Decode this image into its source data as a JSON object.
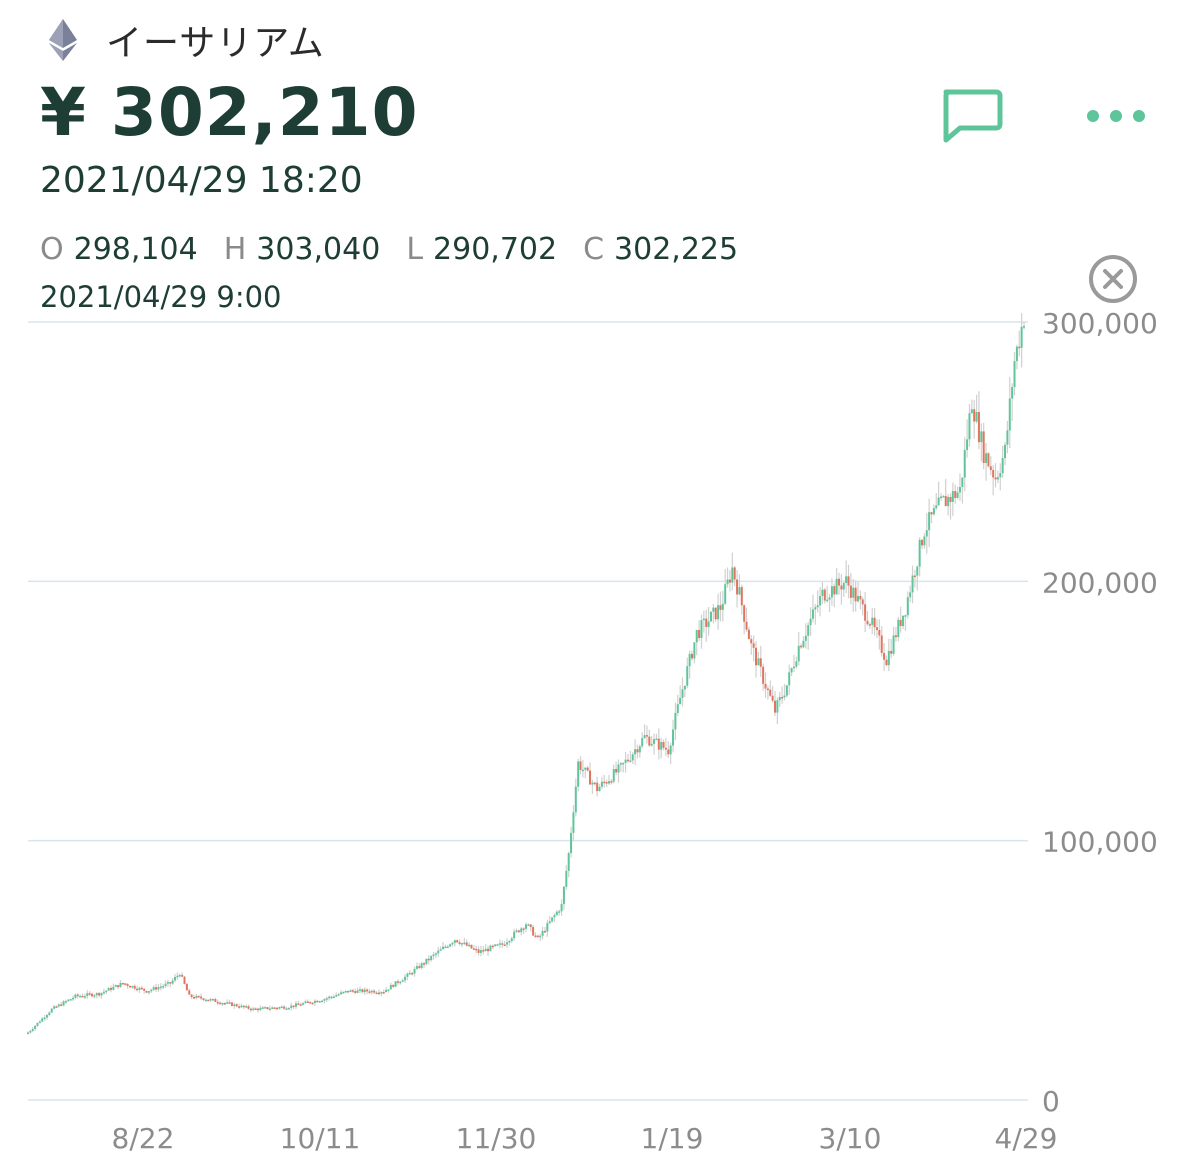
{
  "asset": {
    "name": "イーサリアム",
    "icon": "ethereum-icon"
  },
  "price": "¥ 302,210",
  "timestamp": "2021/04/29 18:20",
  "ohlc": {
    "o_label": "O",
    "o_value": "298,104",
    "h_label": "H",
    "h_value": "303,040",
    "l_label": "L",
    "l_value": "290,702",
    "c_label": "C",
    "c_value": "302,225"
  },
  "bar_date": "2021/04/29 9:00",
  "toolbar": {
    "chat_icon": "chat-bubble-icon",
    "more_icon": "more-dots-icon",
    "close_icon": "close-circle-icon"
  },
  "colors": {
    "accent": "#5ec49a",
    "up": "#5ec49a",
    "down": "#e0745c",
    "wick": "#d0d0d0",
    "grid": "#d6e6ee",
    "text_dark": "#1d3d35"
  },
  "chart_data": {
    "type": "candlestick",
    "y_ticks": [
      "300,000",
      "200,000",
      "100,000",
      "0"
    ],
    "y_tick_values": [
      300000,
      200000,
      100000,
      0
    ],
    "x_ticks": [
      "8/22",
      "10/11",
      "11/30",
      "1/19",
      "3/10",
      "4/29"
    ],
    "ylim": [
      0,
      300000
    ],
    "grid": "horizontal",
    "close_trend": [
      [
        0,
        26000
      ],
      [
        10,
        35000
      ],
      [
        20,
        40000
      ],
      [
        30,
        41000
      ],
      [
        40,
        45000
      ],
      [
        50,
        42000
      ],
      [
        60,
        45000
      ],
      [
        64,
        49000
      ],
      [
        68,
        40000
      ],
      [
        75,
        39000
      ],
      [
        85,
        37000
      ],
      [
        95,
        35000
      ],
      [
        110,
        36000
      ],
      [
        125,
        39000
      ],
      [
        135,
        42000
      ],
      [
        150,
        42000
      ],
      [
        160,
        48000
      ],
      [
        170,
        55000
      ],
      [
        180,
        62000
      ],
      [
        190,
        57000
      ],
      [
        200,
        60000
      ],
      [
        210,
        68000
      ],
      [
        215,
        62000
      ],
      [
        225,
        75000
      ],
      [
        228,
        95000
      ],
      [
        232,
        130000
      ],
      [
        240,
        120000
      ],
      [
        250,
        128000
      ],
      [
        260,
        140000
      ],
      [
        270,
        135000
      ],
      [
        275,
        155000
      ],
      [
        282,
        180000
      ],
      [
        292,
        190000
      ],
      [
        297,
        205000
      ],
      [
        300,
        195000
      ],
      [
        305,
        175000
      ],
      [
        315,
        150000
      ],
      [
        320,
        160000
      ],
      [
        325,
        175000
      ],
      [
        335,
        195000
      ],
      [
        345,
        200000
      ],
      [
        355,
        185000
      ],
      [
        362,
        170000
      ],
      [
        370,
        190000
      ],
      [
        378,
        220000
      ],
      [
        385,
        230000
      ],
      [
        393,
        235000
      ],
      [
        398,
        270000
      ],
      [
        403,
        250000
      ],
      [
        408,
        240000
      ],
      [
        412,
        250000
      ],
      [
        416,
        285000
      ],
      [
        420,
        302225
      ]
    ]
  }
}
